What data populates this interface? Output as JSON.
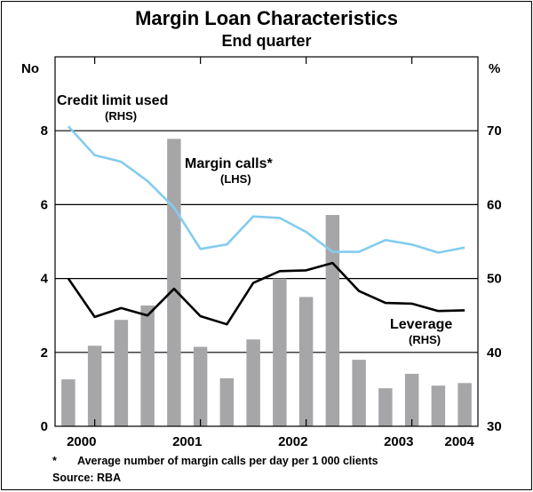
{
  "chart_data": {
    "type": "bar",
    "title": "Margin Loan Characteristics",
    "subtitle": "End quarter",
    "left_axis_unit": "No",
    "right_axis_unit": "%",
    "left_ylim": [
      0,
      10
    ],
    "right_ylim": [
      30,
      80
    ],
    "left_ticks": [
      "0",
      "2",
      "4",
      "6",
      "8"
    ],
    "right_ticks": [
      "30",
      "40",
      "50",
      "60",
      "70"
    ],
    "x_labels": [
      "2000",
      "2001",
      "2002",
      "2003",
      "2004"
    ],
    "quarters": 16,
    "series": [
      {
        "name": "Margin calls",
        "axis": "left",
        "kind": "bar",
        "color": "#a6a6a9",
        "values": [
          1.27,
          2.18,
          2.88,
          3.27,
          7.78,
          2.15,
          1.3,
          2.35,
          4.0,
          3.5,
          5.72,
          1.8,
          1.03,
          1.42,
          1.1,
          1.17
        ]
      },
      {
        "name": "Credit limit used",
        "axis": "right",
        "kind": "line",
        "color": "#84ccee",
        "values": [
          70.6,
          66.7,
          65.8,
          63.2,
          59.6,
          54.0,
          54.6,
          58.4,
          58.2,
          56.3,
          53.6,
          53.6,
          55.2,
          54.6,
          53.5,
          54.2
        ]
      },
      {
        "name": "Leverage",
        "axis": "right",
        "kind": "line",
        "color": "#000000",
        "values": [
          50.0,
          44.8,
          46.0,
          45.0,
          48.6,
          44.9,
          43.8,
          49.4,
          51.0,
          51.1,
          52.1,
          48.3,
          46.7,
          46.6,
          45.6,
          45.7
        ]
      }
    ],
    "annotations": {
      "credit_name": "Credit limit used",
      "credit_axis": "(RHS)",
      "margin_name": "Margin calls*",
      "margin_axis": "(LHS)",
      "leverage_name": "Leverage",
      "leverage_axis": "(RHS)"
    },
    "footnote_marker": "*",
    "footnote": "Average number of margin calls per day per 1 000 clients",
    "source": "Source: RBA"
  }
}
